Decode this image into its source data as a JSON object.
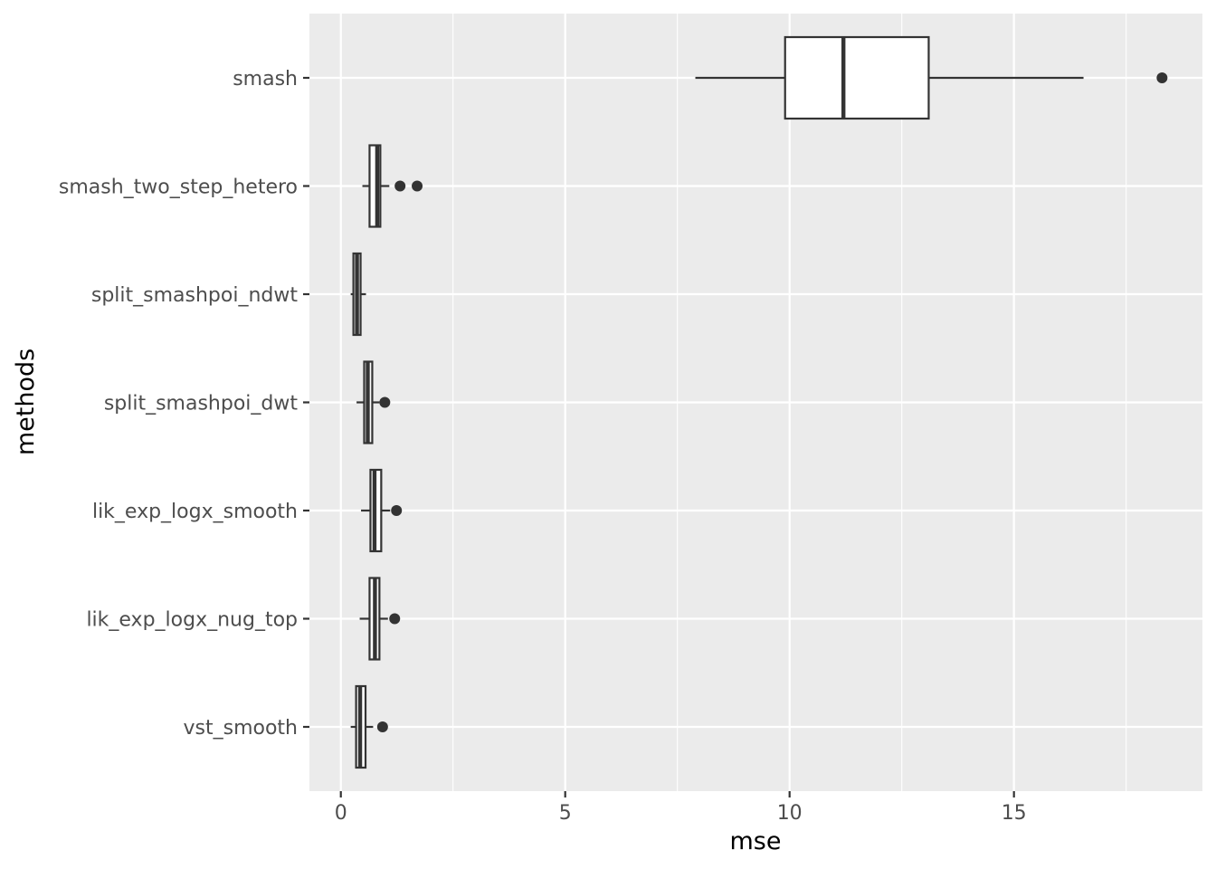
{
  "chart_data": {
    "type": "boxplot",
    "orientation": "horizontal",
    "xlabel": "mse",
    "ylabel": "methods",
    "xlim": [
      -0.7,
      19.2
    ],
    "x_ticks": [
      0,
      5,
      10,
      15
    ],
    "x_tick_labels": [
      "0",
      "5",
      "10",
      "15"
    ],
    "grid": true,
    "panel_background": "#ebebeb",
    "grid_color": "#ffffff",
    "box_fill": "#ffffff",
    "line_color": "#333333",
    "categories": [
      "smash",
      "smash_two_step_hetero",
      "split_smashpoi_ndwt",
      "split_smashpoi_dwt",
      "lik_exp_logx_smooth",
      "lik_exp_logx_nug_top",
      "vst_smooth"
    ],
    "boxes": [
      {
        "category": "smash",
        "whisker_low": 7.9,
        "q1": 9.9,
        "median": 11.2,
        "q3": 13.1,
        "whisker_high": 16.55,
        "outliers": [
          18.3
        ]
      },
      {
        "category": "smash_two_step_hetero",
        "whisker_low": 0.48,
        "q1": 0.64,
        "median": 0.81,
        "q3": 0.88,
        "whisker_high": 1.08,
        "outliers": [
          1.32,
          1.7
        ]
      },
      {
        "category": "split_smashpoi_ndwt",
        "whisker_low": 0.22,
        "q1": 0.28,
        "median": 0.36,
        "q3": 0.44,
        "whisker_high": 0.56,
        "outliers": []
      },
      {
        "category": "split_smashpoi_dwt",
        "whisker_low": 0.35,
        "q1": 0.52,
        "median": 0.6,
        "q3": 0.7,
        "whisker_high": 0.86,
        "outliers": [
          0.98
        ]
      },
      {
        "category": "lik_exp_logx_smooth",
        "whisker_low": 0.45,
        "q1": 0.66,
        "median": 0.75,
        "q3": 0.9,
        "whisker_high": 1.1,
        "outliers": [
          1.24
        ]
      },
      {
        "category": "lik_exp_logx_nug_top",
        "whisker_low": 0.42,
        "q1": 0.64,
        "median": 0.76,
        "q3": 0.86,
        "whisker_high": 1.05,
        "outliers": [
          1.2
        ]
      },
      {
        "category": "vst_smooth",
        "whisker_low": 0.22,
        "q1": 0.34,
        "median": 0.43,
        "q3": 0.55,
        "whisker_high": 0.72,
        "outliers": [
          0.93
        ]
      }
    ]
  }
}
